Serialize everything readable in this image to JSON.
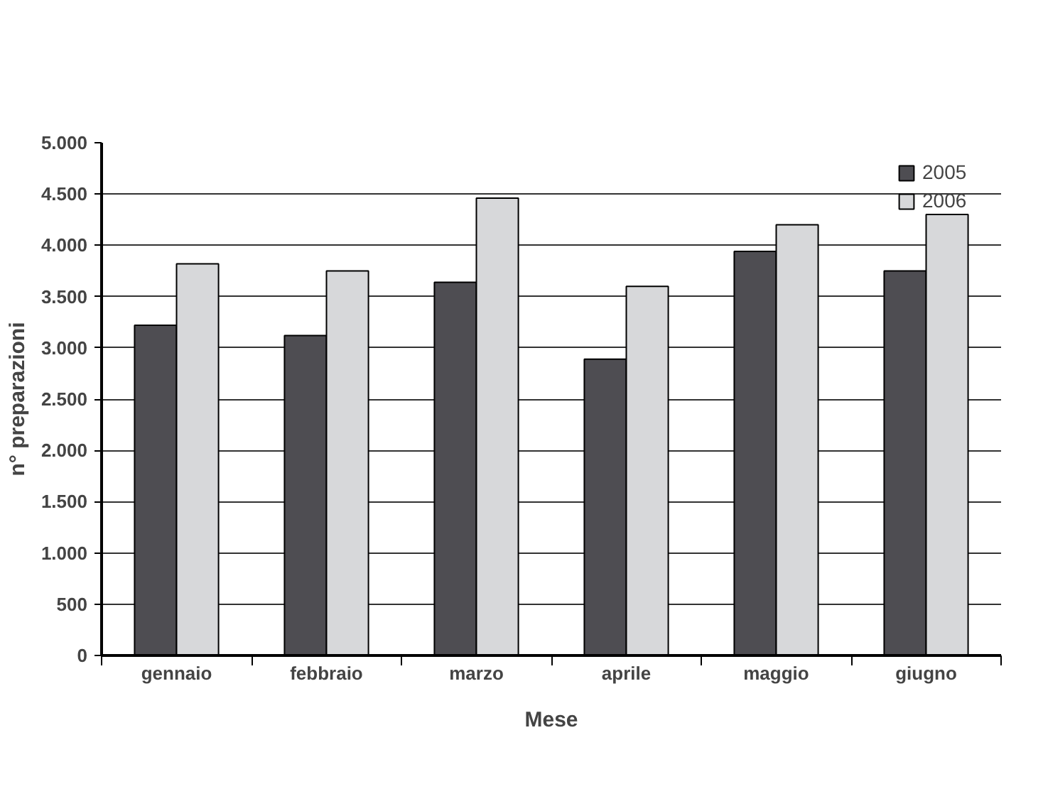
{
  "chart_data": {
    "type": "bar",
    "xlabel": "Mese",
    "ylabel": "n° preparazioni",
    "categories": [
      "gennaio",
      "febbraio",
      "marzo",
      "aprile",
      "maggio",
      "giugno"
    ],
    "series": [
      {
        "name": "2005",
        "color": "#4e4d52",
        "values": [
          3220,
          3120,
          3640,
          2890,
          3940,
          3750
        ]
      },
      {
        "name": "2006",
        "color": "#d7d8da",
        "values": [
          3820,
          3750,
          4460,
          3600,
          4200,
          4300
        ]
      }
    ],
    "ylim": [
      0,
      5000
    ],
    "yticks": [
      {
        "value": 0,
        "label": "0"
      },
      {
        "value": 500,
        "label": "500"
      },
      {
        "value": 1000,
        "label": "1.000"
      },
      {
        "value": 1500,
        "label": "1.500"
      },
      {
        "value": 2000,
        "label": "2.000"
      },
      {
        "value": 2500,
        "label": "2.500"
      },
      {
        "value": 3000,
        "label": "3.000"
      },
      {
        "value": 3500,
        "label": "3.500"
      },
      {
        "value": 4000,
        "label": "4.000"
      },
      {
        "value": 4500,
        "label": "4.500"
      },
      {
        "value": 5000,
        "label": "5.000"
      }
    ],
    "grid": "y",
    "legend": "top right"
  }
}
